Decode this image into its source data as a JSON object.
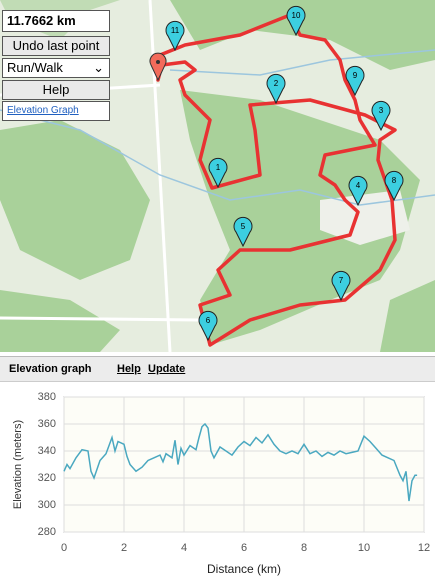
{
  "controls": {
    "distance": "11.7662 km",
    "undo": "Undo last point",
    "mode": "Run/Walk",
    "help": "Help",
    "elevation_link": "Elevation Graph"
  },
  "map": {
    "markers": [
      "1",
      "2",
      "3",
      "4",
      "5",
      "6",
      "7",
      "8",
      "9",
      "10",
      "11"
    ]
  },
  "panel": {
    "title": "Elevation graph",
    "help": "Help",
    "update": "Update"
  },
  "chart_data": {
    "type": "line",
    "xlabel": "Distance (km)",
    "ylabel": "Elevation (meters)",
    "x": [
      0,
      0.1,
      0.2,
      0.4,
      0.6,
      0.8,
      0.9,
      1.0,
      1.2,
      1.4,
      1.6,
      1.7,
      1.8,
      2.0,
      2.1,
      2.2,
      2.4,
      2.6,
      2.8,
      3.0,
      3.2,
      3.3,
      3.4,
      3.6,
      3.7,
      3.8,
      3.9,
      4.0,
      4.2,
      4.4,
      4.5,
      4.6,
      4.7,
      4.8,
      4.9,
      5.0,
      5.2,
      5.4,
      5.6,
      5.8,
      6.0,
      6.2,
      6.4,
      6.6,
      6.8,
      7.0,
      7.2,
      7.4,
      7.6,
      7.8,
      8.0,
      8.2,
      8.4,
      8.6,
      8.8,
      9.0,
      9.2,
      9.4,
      9.6,
      9.8,
      10.0,
      10.2,
      10.4,
      10.6,
      10.8,
      11.0,
      11.2,
      11.3,
      11.4,
      11.5,
      11.6,
      11.7,
      11.77
    ],
    "values": [
      325,
      330,
      327,
      335,
      341,
      340,
      325,
      320,
      333,
      338,
      350,
      340,
      347,
      345,
      336,
      330,
      325,
      328,
      333,
      335,
      337,
      332,
      338,
      335,
      348,
      330,
      342,
      337,
      344,
      341,
      350,
      358,
      360,
      357,
      340,
      335,
      343,
      340,
      337,
      343,
      347,
      344,
      350,
      346,
      352,
      345,
      340,
      338,
      340,
      338,
      345,
      338,
      340,
      336,
      339,
      337,
      340,
      338,
      339,
      340,
      351,
      347,
      342,
      337,
      335,
      333,
      322,
      318,
      325,
      303,
      318,
      322,
      322
    ],
    "color": "#4aa8c0",
    "xlim": [
      0,
      12
    ],
    "ylim": [
      280,
      380
    ],
    "xticks": [
      0,
      2,
      4,
      6,
      8,
      10,
      12
    ],
    "yticks": [
      280,
      300,
      320,
      340,
      360,
      380
    ],
    "grid": true
  }
}
